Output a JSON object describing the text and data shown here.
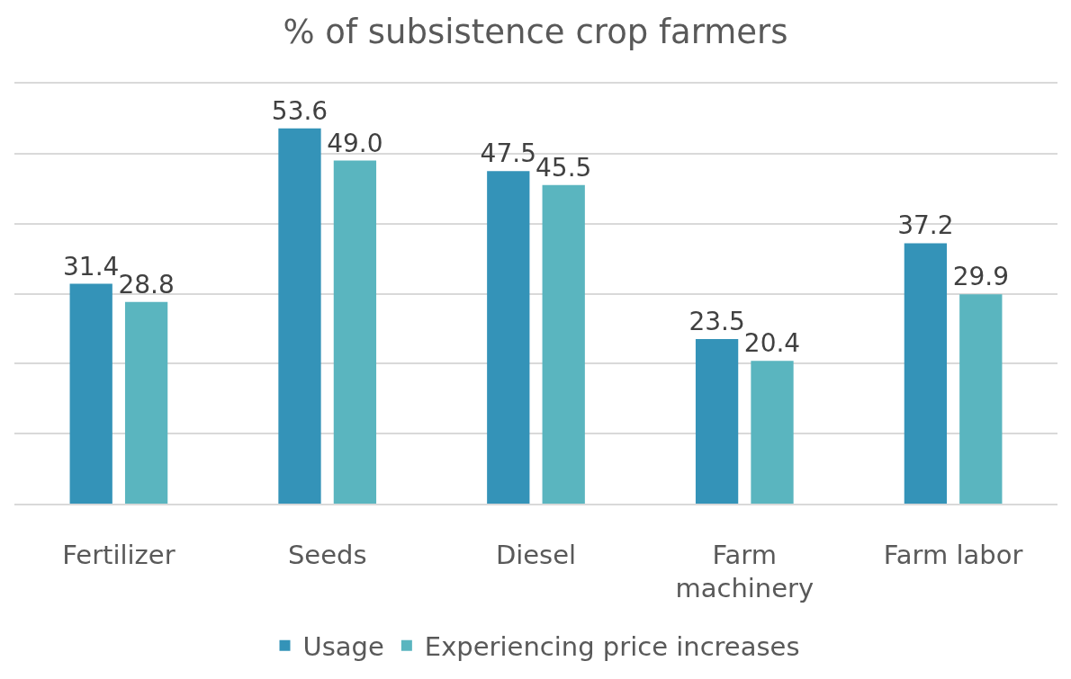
{
  "chart_data": {
    "type": "bar",
    "title": "% of subsistence crop farmers",
    "categories": [
      "Fertilizer",
      "Seeds",
      "Diesel",
      "Farm machinery",
      "Farm labor"
    ],
    "series": [
      {
        "name": "Usage",
        "color": "#3493b8",
        "values": [
          31.4,
          53.6,
          47.5,
          23.5,
          37.2
        ],
        "value_labels": [
          "31.4",
          "53.6",
          "47.5",
          "23.5",
          "37.2"
        ]
      },
      {
        "name": "Experiencing price increases",
        "color": "#5ab5bf",
        "values": [
          28.8,
          49.0,
          45.5,
          20.4,
          29.9
        ],
        "value_labels": [
          "28.8",
          "49.0",
          "45.5",
          "20.4",
          "29.9"
        ]
      }
    ],
    "ylim": [
      0,
      60
    ],
    "yticks": [
      {
        "value": 0,
        "label": null
      },
      {
        "value": 10,
        "label": null
      },
      {
        "value": 20,
        "label": null
      },
      {
        "value": 30,
        "label": null
      },
      {
        "value": 40,
        "label": null
      },
      {
        "value": 50,
        "label": null
      },
      {
        "value": 60,
        "label": null
      }
    ],
    "tick_labels": "x",
    "grid": "y",
    "legend": "bottom"
  }
}
